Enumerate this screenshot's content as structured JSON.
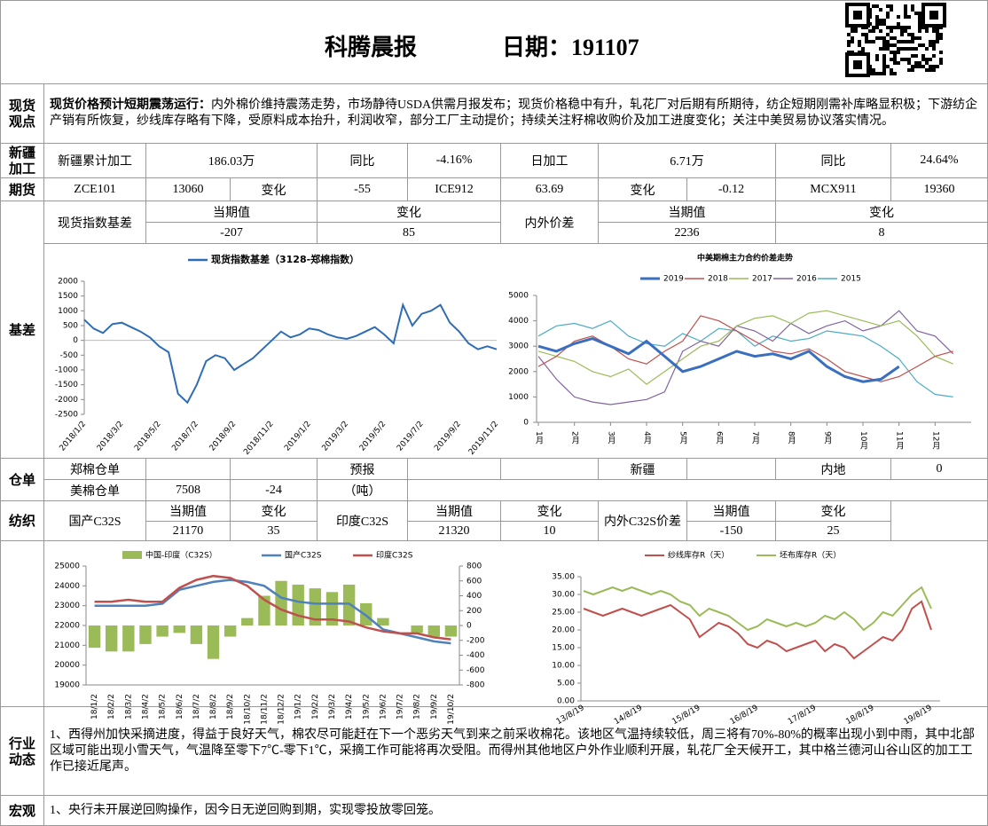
{
  "header": {
    "title": "科腾晨报",
    "date": "日期：191107"
  },
  "view": {
    "label": "现货观点",
    "lead": "现货价格预计短期震荡运行：",
    "text": "内外棉价维持震荡走势，市场静待USDA供需月报发布；现货价格稳中有升，轧花厂对后期有所期待，纺企短期刚需补库略显积极；下游纺企产销有所恢复，纱线库存略有下降，受原料成本抬升，利润收窄，部分工厂主动提价；持续关注籽棉收购价及加工进度变化；关注中美贸易协议落实情况。"
  },
  "xinjiang": {
    "label": "新疆加工",
    "cells": [
      "新疆累计加工",
      "186.03万",
      "同比",
      "-4.16%",
      "日加工",
      "6.71万",
      "同比",
      "24.64%"
    ]
  },
  "futures": {
    "label": "期货",
    "cells": [
      "ZCE101",
      "13060",
      "变化",
      "-55",
      "ICE912",
      "63.69",
      "变化",
      "-0.12",
      "MCX911",
      "19360"
    ]
  },
  "basis": {
    "label": "基差",
    "cells": [
      "现货指数基差",
      "当期值",
      "变化",
      "-207",
      "85",
      "内外价差",
      "当期值",
      "变化",
      "2236",
      "8"
    ]
  },
  "warehouse": {
    "label": "仓单",
    "cells": [
      "郑棉仓单",
      "预报",
      "新疆",
      "内地",
      "0",
      "美棉仓单",
      "7508",
      "-24",
      "（吨）"
    ]
  },
  "textile": {
    "label": "纺织",
    "cells": [
      "国产C32S",
      "当期值",
      "变化",
      "21170",
      "35",
      "印度C32S",
      "当期值",
      "变化",
      "21320",
      "10",
      "内外C32S价差",
      "当期值",
      "变化",
      "-150",
      "25"
    ]
  },
  "industry": {
    "label": "行业动态",
    "text": "1、西得州加快采摘进度，得益于良好天气，棉农尽可能赶在下一个恶劣天气到来之前采收棉花。该地区气温持续较低，周三将有70%-80%的概率出现小到中雨，其中北部区域可能出现小雪天气，气温降至零下7℃-零下1℃，采摘工作可能将再次受阻。而得州其他地区户外作业顺利开展，轧花厂全天候开工，其中格兰德河山谷山区的加工工作已接近尾声。"
  },
  "macro": {
    "label": "宏观",
    "text": "1、央行未开展逆回购操作，因今日无逆回购到期，实现零投放零回笼。"
  },
  "charts": [
    {
      "type": "line",
      "categories": [
        "2018/1/2",
        null,
        null,
        null,
        "2018/3/2",
        null,
        null,
        null,
        "2018/5/2",
        null,
        null,
        null,
        "2018/7/2",
        null,
        null,
        null,
        "2018/9/2",
        null,
        null,
        null,
        "2018/11/2",
        null,
        null,
        null,
        "2019/1/2",
        null,
        null,
        null,
        "2019/3/2",
        null,
        null,
        null,
        "2019/5/2",
        null,
        null,
        null,
        "2019/7/2",
        null,
        null,
        null,
        "2019/9/2",
        null,
        null,
        null,
        "2019/11/2"
      ],
      "series": [
        {
          "name": "现货指数基差（3128-郑棉指数）",
          "color": "#2e6db4",
          "values": [
            700,
            400,
            250,
            550,
            600,
            450,
            300,
            100,
            -200,
            -400,
            -1800,
            -2100,
            -1500,
            -700,
            -500,
            -600,
            -1000,
            -800,
            -600,
            -300,
            0,
            300,
            100,
            200,
            400,
            350,
            200,
            100,
            50,
            150,
            300,
            450,
            200,
            -100,
            1200,
            500,
            900,
            1000,
            1200,
            600,
            300,
            -100,
            -300,
            -200,
            -300
          ]
        }
      ],
      "ylim": [
        -2500,
        2000
      ],
      "yticks": [
        2000,
        1500,
        1000,
        500,
        0,
        -500,
        -1000,
        -1500,
        -2000,
        -2500
      ]
    },
    {
      "type": "line",
      "title": "中美期棉主力合约价差走势",
      "x": [
        1,
        1.5,
        2,
        2.5,
        3,
        3.5,
        4,
        4.5,
        5,
        5.5,
        6,
        6.5,
        7,
        7.5,
        8,
        8.5,
        9,
        9.5,
        10,
        10.5,
        11,
        11.5,
        12,
        12.5
      ],
      "xlim": [
        0.95,
        13
      ],
      "xticks": [
        {
          "value": 1,
          "label": "1月"
        },
        {
          "value": 2,
          "label": "2月"
        },
        {
          "value": 3,
          "label": "3月"
        },
        {
          "value": 4,
          "label": "4月"
        },
        {
          "value": 5,
          "label": "5月"
        },
        {
          "value": 6,
          "label": "6月"
        },
        {
          "value": 7,
          "label": "7月"
        },
        {
          "value": 8,
          "label": "8月"
        },
        {
          "value": 9,
          "label": "9月"
        },
        {
          "value": 10,
          "label": "10月"
        },
        {
          "value": 11,
          "label": "11月"
        },
        {
          "value": 12,
          "label": "12月"
        }
      ],
      "ylim": [
        0,
        5000
      ],
      "yticks": [
        0,
        1000,
        2000,
        3000,
        4000,
        5000
      ],
      "series": [
        {
          "name": "2019",
          "color": "#3a6fbf",
          "width": 3,
          "values": [
            3000,
            2800,
            3100,
            3300,
            3000,
            2700,
            3200,
            2600,
            2000,
            2200,
            2500,
            2800,
            2600,
            2700,
            2500,
            2800,
            2200,
            1800,
            1600,
            1700,
            2200,
            null,
            null,
            null
          ]
        },
        {
          "name": "2018",
          "color": "#c0504d",
          "width": 1.2,
          "values": [
            2200,
            2600,
            3200,
            3400,
            3000,
            2500,
            2300,
            2800,
            3200,
            4200,
            4000,
            3600,
            3200,
            2800,
            2700,
            2900,
            2500,
            2000,
            1800,
            1600,
            1800,
            2200,
            2600,
            2800
          ]
        },
        {
          "name": "2017",
          "color": "#9bbb59",
          "width": 1.2,
          "values": [
            2800,
            2600,
            2400,
            2000,
            1800,
            2100,
            1500,
            2000,
            2500,
            3000,
            3200,
            3800,
            4100,
            4200,
            3900,
            4300,
            4400,
            4200,
            4000,
            3800,
            4000,
            3400,
            2600,
            2300
          ]
        },
        {
          "name": "2016",
          "color": "#8064a2",
          "width": 1.2,
          "values": [
            2600,
            1700,
            1000,
            800,
            700,
            800,
            900,
            1200,
            2800,
            3200,
            3000,
            3800,
            3600,
            3200,
            3900,
            3500,
            3800,
            4000,
            3600,
            3800,
            4400,
            3600,
            3400,
            2700
          ]
        },
        {
          "name": "2015",
          "color": "#4bacc6",
          "width": 1.2,
          "values": [
            3400,
            3800,
            3900,
            3700,
            4000,
            3400,
            3100,
            3000,
            3500,
            3200,
            3700,
            3600,
            3000,
            3400,
            3200,
            3300,
            3600,
            3500,
            3400,
            3000,
            2500,
            1600,
            1100,
            1000
          ]
        }
      ]
    },
    {
      "type": "bar-line",
      "categories": [
        "18/1/2",
        "18/2/2",
        "18/3/2",
        "18/4/2",
        "18/5/2",
        "18/6/2",
        "18/7/2",
        "18/8/2",
        "18/9/2",
        "18/10/2",
        "18/11/2",
        "18/12/2",
        "19/1/2",
        "19/2/2",
        "19/3/2",
        "19/4/2",
        "19/5/2",
        "19/6/2",
        "19/7/2",
        "19/8/2",
        "19/9/2",
        "19/10/2"
      ],
      "ylim": [
        19000,
        25000
      ],
      "yticks": [
        19000,
        20000,
        21000,
        22000,
        23000,
        24000,
        25000
      ],
      "y2lim": [
        -800,
        800
      ],
      "y2ticks": [
        -800,
        -600,
        -400,
        -200,
        0,
        200,
        400,
        600,
        800
      ],
      "series": [
        {
          "name": "中国-印度（C32S）",
          "type": "bar",
          "axis": "y2",
          "color": "#9bbb59",
          "values": [
            -300,
            -350,
            -350,
            -250,
            -150,
            -100,
            -250,
            -450,
            -150,
            100,
            400,
            600,
            550,
            500,
            450,
            550,
            300,
            100,
            0,
            -100,
            -150,
            -150
          ]
        },
        {
          "name": "国产C32S",
          "type": "line",
          "color": "#4f81bd",
          "values": [
            23000,
            23000,
            23000,
            23000,
            23100,
            23800,
            24000,
            24200,
            24300,
            24200,
            24000,
            23400,
            23200,
            23100,
            23100,
            23100,
            22500,
            21800,
            21600,
            21400,
            21200,
            21100
          ]
        },
        {
          "name": "印度C32S",
          "type": "line",
          "color": "#c0504d",
          "values": [
            23200,
            23200,
            23300,
            23200,
            23200,
            23900,
            24300,
            24500,
            24400,
            24000,
            23300,
            22800,
            22500,
            22300,
            22300,
            22200,
            21900,
            21700,
            21600,
            21600,
            21400,
            21300
          ]
        }
      ]
    },
    {
      "type": "line",
      "categories": [
        "13/8/19",
        null,
        null,
        null,
        null,
        null,
        "14/8/19",
        null,
        null,
        null,
        null,
        null,
        "15/8/19",
        null,
        null,
        null,
        null,
        null,
        "16/8/19",
        null,
        null,
        null,
        null,
        null,
        "17/8/19",
        null,
        null,
        null,
        null,
        null,
        "18/8/19",
        null,
        null,
        null,
        null,
        null,
        "19/8/19"
      ],
      "ylim": [
        0,
        35
      ],
      "yticks": [
        {
          "value": 0,
          "label": "0.00"
        },
        {
          "value": 5,
          "label": "5.00"
        },
        {
          "value": 10,
          "label": "10.00"
        },
        {
          "value": 15,
          "label": "15.00"
        },
        {
          "value": 20,
          "label": "20.00"
        },
        {
          "value": 25,
          "label": "25.00"
        },
        {
          "value": 30,
          "label": "30.00"
        },
        {
          "value": 35,
          "label": "35.00"
        }
      ],
      "series": [
        {
          "name": "纱线库存R（天）",
          "color": "#c0504d",
          "values": [
            26,
            25,
            24,
            25,
            26,
            25,
            24,
            25,
            26,
            27,
            25,
            23,
            18,
            20,
            22,
            21,
            19,
            16,
            15,
            17,
            16,
            14,
            15,
            16,
            17,
            14,
            16,
            15,
            12,
            14,
            16,
            18,
            17,
            20,
            26,
            28,
            20
          ]
        },
        {
          "name": "坯布库存R（天）",
          "color": "#9bbb59",
          "values": [
            31,
            30,
            31,
            32,
            31,
            32,
            31,
            30,
            31,
            30,
            28,
            27,
            24,
            26,
            25,
            24,
            22,
            20,
            21,
            23,
            22,
            21,
            22,
            21,
            22,
            24,
            23,
            25,
            23,
            20,
            22,
            25,
            24,
            27,
            30,
            32,
            26
          ]
        }
      ]
    }
  ]
}
